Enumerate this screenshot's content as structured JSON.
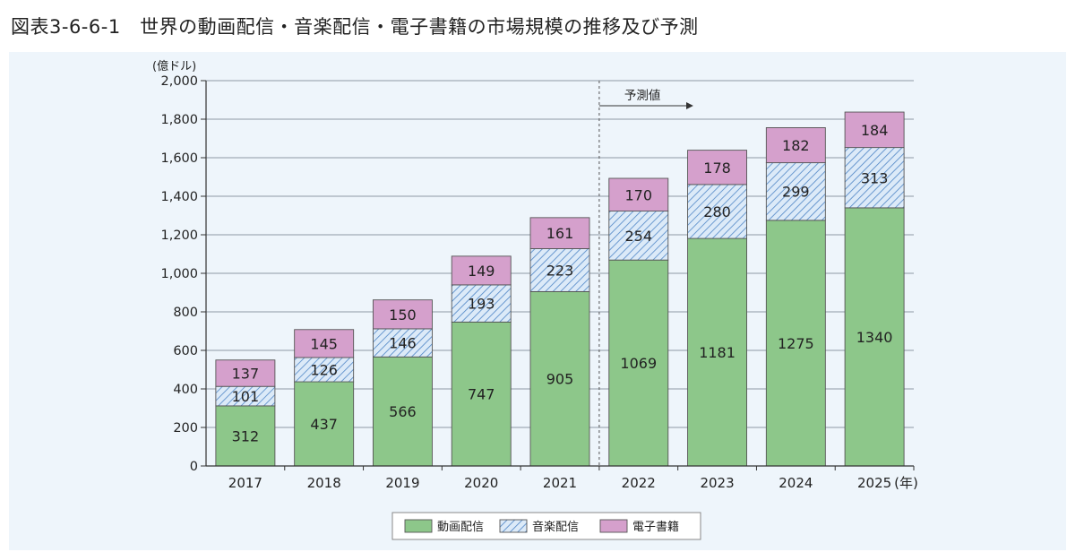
{
  "page_title": "図表3-6-6-1　世界の動画配信・音楽配信・電子書籍の市場規模の推移及び予測",
  "chart_data": {
    "type": "bar",
    "stacked": true,
    "y_unit_label": "(億ドル)",
    "x_unit_label": "(年)",
    "ylim": [
      0,
      2000
    ],
    "y_ticks": [
      "0",
      "200",
      "400",
      "600",
      "800",
      "1,000",
      "1,200",
      "1,400",
      "1,600",
      "1,800",
      "2,000"
    ],
    "y_tick_values": [
      0,
      200,
      400,
      600,
      800,
      1000,
      1200,
      1400,
      1600,
      1800,
      2000
    ],
    "categories": [
      "2017",
      "2018",
      "2019",
      "2020",
      "2021",
      "2022",
      "2023",
      "2024",
      "2025"
    ],
    "grid": true,
    "forecast_label": "予測値",
    "forecast_start": "2022",
    "legend_position": "bottom-center",
    "series": [
      {
        "name": "動画配信",
        "values": [
          312,
          437,
          566,
          747,
          905,
          1069,
          1181,
          1275,
          1340
        ],
        "color": "#8dc78a",
        "pattern": "solid"
      },
      {
        "name": "音楽配信",
        "values": [
          101,
          126,
          146,
          193,
          223,
          254,
          280,
          299,
          313
        ],
        "color": "#a9cdee",
        "pattern": "hatched"
      },
      {
        "name": "電子書籍",
        "values": [
          137,
          145,
          150,
          149,
          161,
          170,
          178,
          182,
          184
        ],
        "color": "#d5a0cc",
        "pattern": "solid"
      }
    ]
  }
}
